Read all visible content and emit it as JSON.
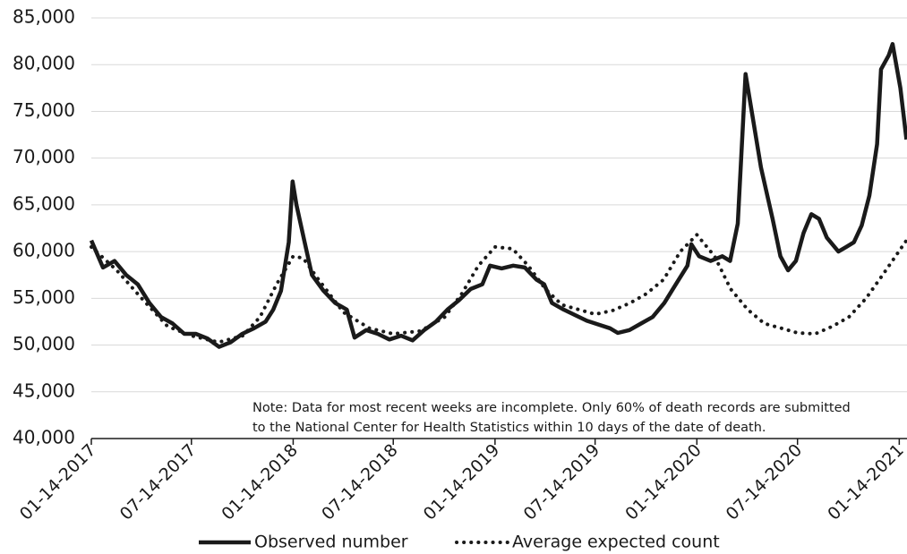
{
  "chart_data": {
    "type": "line",
    "note": [
      "Note: Data for most recent weeks are incomplete. Only 60% of death records are submitted",
      "to the National Center for Health Statistics within 10 days of the date of death."
    ],
    "xlim": [
      "01-14-2017",
      "01-28-2021"
    ],
    "xticks": [
      "01-14-2017",
      "07-14-2017",
      "01-14-2018",
      "07-14-2018",
      "01-14-2019",
      "07-14-2019",
      "01-14-2020",
      "07-14-2020",
      "01-14-2021"
    ],
    "ylim": [
      40000,
      85000
    ],
    "yticks": [
      {
        "value": 40000,
        "label": "40,000"
      },
      {
        "value": 45000,
        "label": "45,000"
      },
      {
        "value": 50000,
        "label": "50,000"
      },
      {
        "value": 55000,
        "label": "55,000"
      },
      {
        "value": 60000,
        "label": "60,000"
      },
      {
        "value": 65000,
        "label": "65,000"
      },
      {
        "value": 70000,
        "label": "70,000"
      },
      {
        "value": 75000,
        "label": "75,000"
      },
      {
        "value": 80000,
        "label": "80,000"
      },
      {
        "value": 85000,
        "label": "85,000"
      }
    ],
    "grid": true,
    "series": [
      {
        "name": "Observed number",
        "color": "#1a1a1a",
        "style": "solid",
        "x": [
          "01-14-2017",
          "02-04-2017",
          "02-25-2017",
          "03-18-2017",
          "04-08-2017",
          "04-29-2017",
          "05-20-2017",
          "06-10-2017",
          "07-01-2017",
          "07-22-2017",
          "08-12-2017",
          "09-02-2017",
          "09-23-2017",
          "10-14-2017",
          "11-04-2017",
          "11-25-2017",
          "12-09-2017",
          "12-23-2017",
          "01-06-2018",
          "01-13-2018",
          "01-20-2018",
          "02-03-2018",
          "02-17-2018",
          "03-10-2018",
          "03-31-2018",
          "04-21-2018",
          "05-05-2018",
          "05-26-2018",
          "06-16-2018",
          "07-07-2018",
          "07-28-2018",
          "08-18-2018",
          "09-08-2018",
          "09-29-2018",
          "10-20-2018",
          "11-10-2018",
          "12-01-2018",
          "12-22-2018",
          "01-05-2019",
          "01-26-2019",
          "02-16-2019",
          "03-09-2019",
          "03-30-2019",
          "04-13-2019",
          "04-27-2019",
          "05-18-2019",
          "06-08-2019",
          "06-29-2019",
          "07-20-2019",
          "08-10-2019",
          "08-24-2019",
          "09-14-2019",
          "10-05-2019",
          "10-26-2019",
          "11-16-2019",
          "12-07-2019",
          "12-28-2019",
          "01-04-2020",
          "01-18-2020",
          "02-08-2020",
          "02-29-2020",
          "03-14-2020",
          "03-28-2020",
          "04-11-2020",
          "04-25-2020",
          "05-09-2020",
          "05-30-2020",
          "06-13-2020",
          "06-27-2020",
          "07-11-2020",
          "07-25-2020",
          "08-08-2020",
          "08-22-2020",
          "09-05-2020",
          "09-26-2020",
          "10-10-2020",
          "10-24-2020",
          "11-07-2020",
          "11-21-2020",
          "12-05-2020",
          "12-12-2020",
          "12-26-2020",
          "01-02-2021",
          "01-16-2021",
          "01-27-2021"
        ],
        "values": [
          61200,
          58300,
          59000,
          57500,
          56500,
          54500,
          53000,
          52300,
          51200,
          51200,
          50700,
          49800,
          50300,
          51200,
          51800,
          52500,
          53800,
          55800,
          61000,
          67500,
          65000,
          61200,
          57500,
          55800,
          54500,
          53800,
          50800,
          51600,
          51200,
          50600,
          51000,
          50500,
          51600,
          52500,
          53800,
          54800,
          56000,
          56500,
          58500,
          58200,
          58500,
          58300,
          57000,
          56500,
          54500,
          53800,
          53200,
          52600,
          52200,
          51800,
          51300,
          51600,
          52300,
          53000,
          54500,
          56500,
          58500,
          60800,
          59500,
          59000,
          59500,
          59000,
          63000,
          79000,
          74000,
          69000,
          63500,
          59500,
          58000,
          59000,
          62000,
          64000,
          63500,
          61500,
          60000,
          60500,
          61000,
          62800,
          66000,
          71500,
          79500,
          81000,
          82200,
          77500,
          72000
        ]
      },
      {
        "name": "Average expected count",
        "color": "#1a1a1a",
        "style": "dotted",
        "x": [
          "01-14-2017",
          "03-01-2017",
          "04-15-2017",
          "06-01-2017",
          "07-14-2017",
          "09-01-2017",
          "10-15-2017",
          "11-15-2017",
          "12-15-2017",
          "01-14-2018",
          "02-01-2018",
          "03-01-2018",
          "04-15-2018",
          "06-01-2018",
          "07-14-2018",
          "09-01-2018",
          "10-15-2018",
          "11-15-2018",
          "12-15-2018",
          "01-14-2019",
          "02-15-2019",
          "03-15-2019",
          "04-15-2019",
          "05-15-2019",
          "07-14-2019",
          "08-15-2019",
          "09-15-2019",
          "10-15-2019",
          "11-15-2019",
          "12-15-2019",
          "01-14-2020",
          "02-15-2020",
          "03-15-2020",
          "04-15-2020",
          "05-15-2020",
          "06-15-2020",
          "07-14-2020",
          "08-15-2020",
          "09-15-2020",
          "10-15-2020",
          "11-15-2020",
          "12-15-2020",
          "01-27-2021"
        ],
        "values": [
          60500,
          58000,
          55000,
          52000,
          51000,
          50300,
          51000,
          53000,
          56500,
          59500,
          59300,
          57000,
          53500,
          51800,
          51200,
          51500,
          53000,
          55500,
          58500,
          60500,
          60300,
          58500,
          56000,
          54300,
          53300,
          53700,
          54500,
          55500,
          57000,
          60000,
          61800,
          59500,
          56000,
          53800,
          52300,
          51800,
          51300,
          51200,
          52000,
          53000,
          55000,
          57500,
          61200
        ]
      }
    ]
  }
}
